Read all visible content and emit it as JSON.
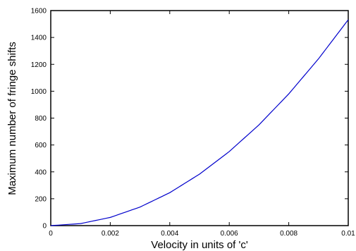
{
  "chart_data": {
    "type": "line",
    "xlabel": "Velocity in units of 'c'",
    "ylabel": "Maximum number of fringe shifts",
    "xlim": [
      0,
      0.01
    ],
    "ylim": [
      0,
      1600
    ],
    "x_ticks": [
      0,
      0.002,
      0.004,
      0.006,
      0.008,
      0.01
    ],
    "x_tick_labels": [
      "0",
      "0.002",
      "0.004",
      "0.006",
      "0.008",
      "0.01"
    ],
    "y_ticks": [
      0,
      200,
      400,
      600,
      800,
      1000,
      1200,
      1400,
      1600
    ],
    "y_tick_labels": [
      "0",
      "200",
      "400",
      "600",
      "800",
      "1000",
      "1200",
      "1400",
      "1600"
    ],
    "grid": false,
    "line_color": "#0000cc",
    "series": [
      {
        "x": [
          0,
          0.001,
          0.002,
          0.003,
          0.004,
          0.005,
          0.006,
          0.007,
          0.008,
          0.009,
          0.01
        ],
        "values": [
          0,
          15,
          61,
          138,
          245,
          383,
          551,
          750,
          980,
          1241,
          1532
        ]
      }
    ]
  }
}
